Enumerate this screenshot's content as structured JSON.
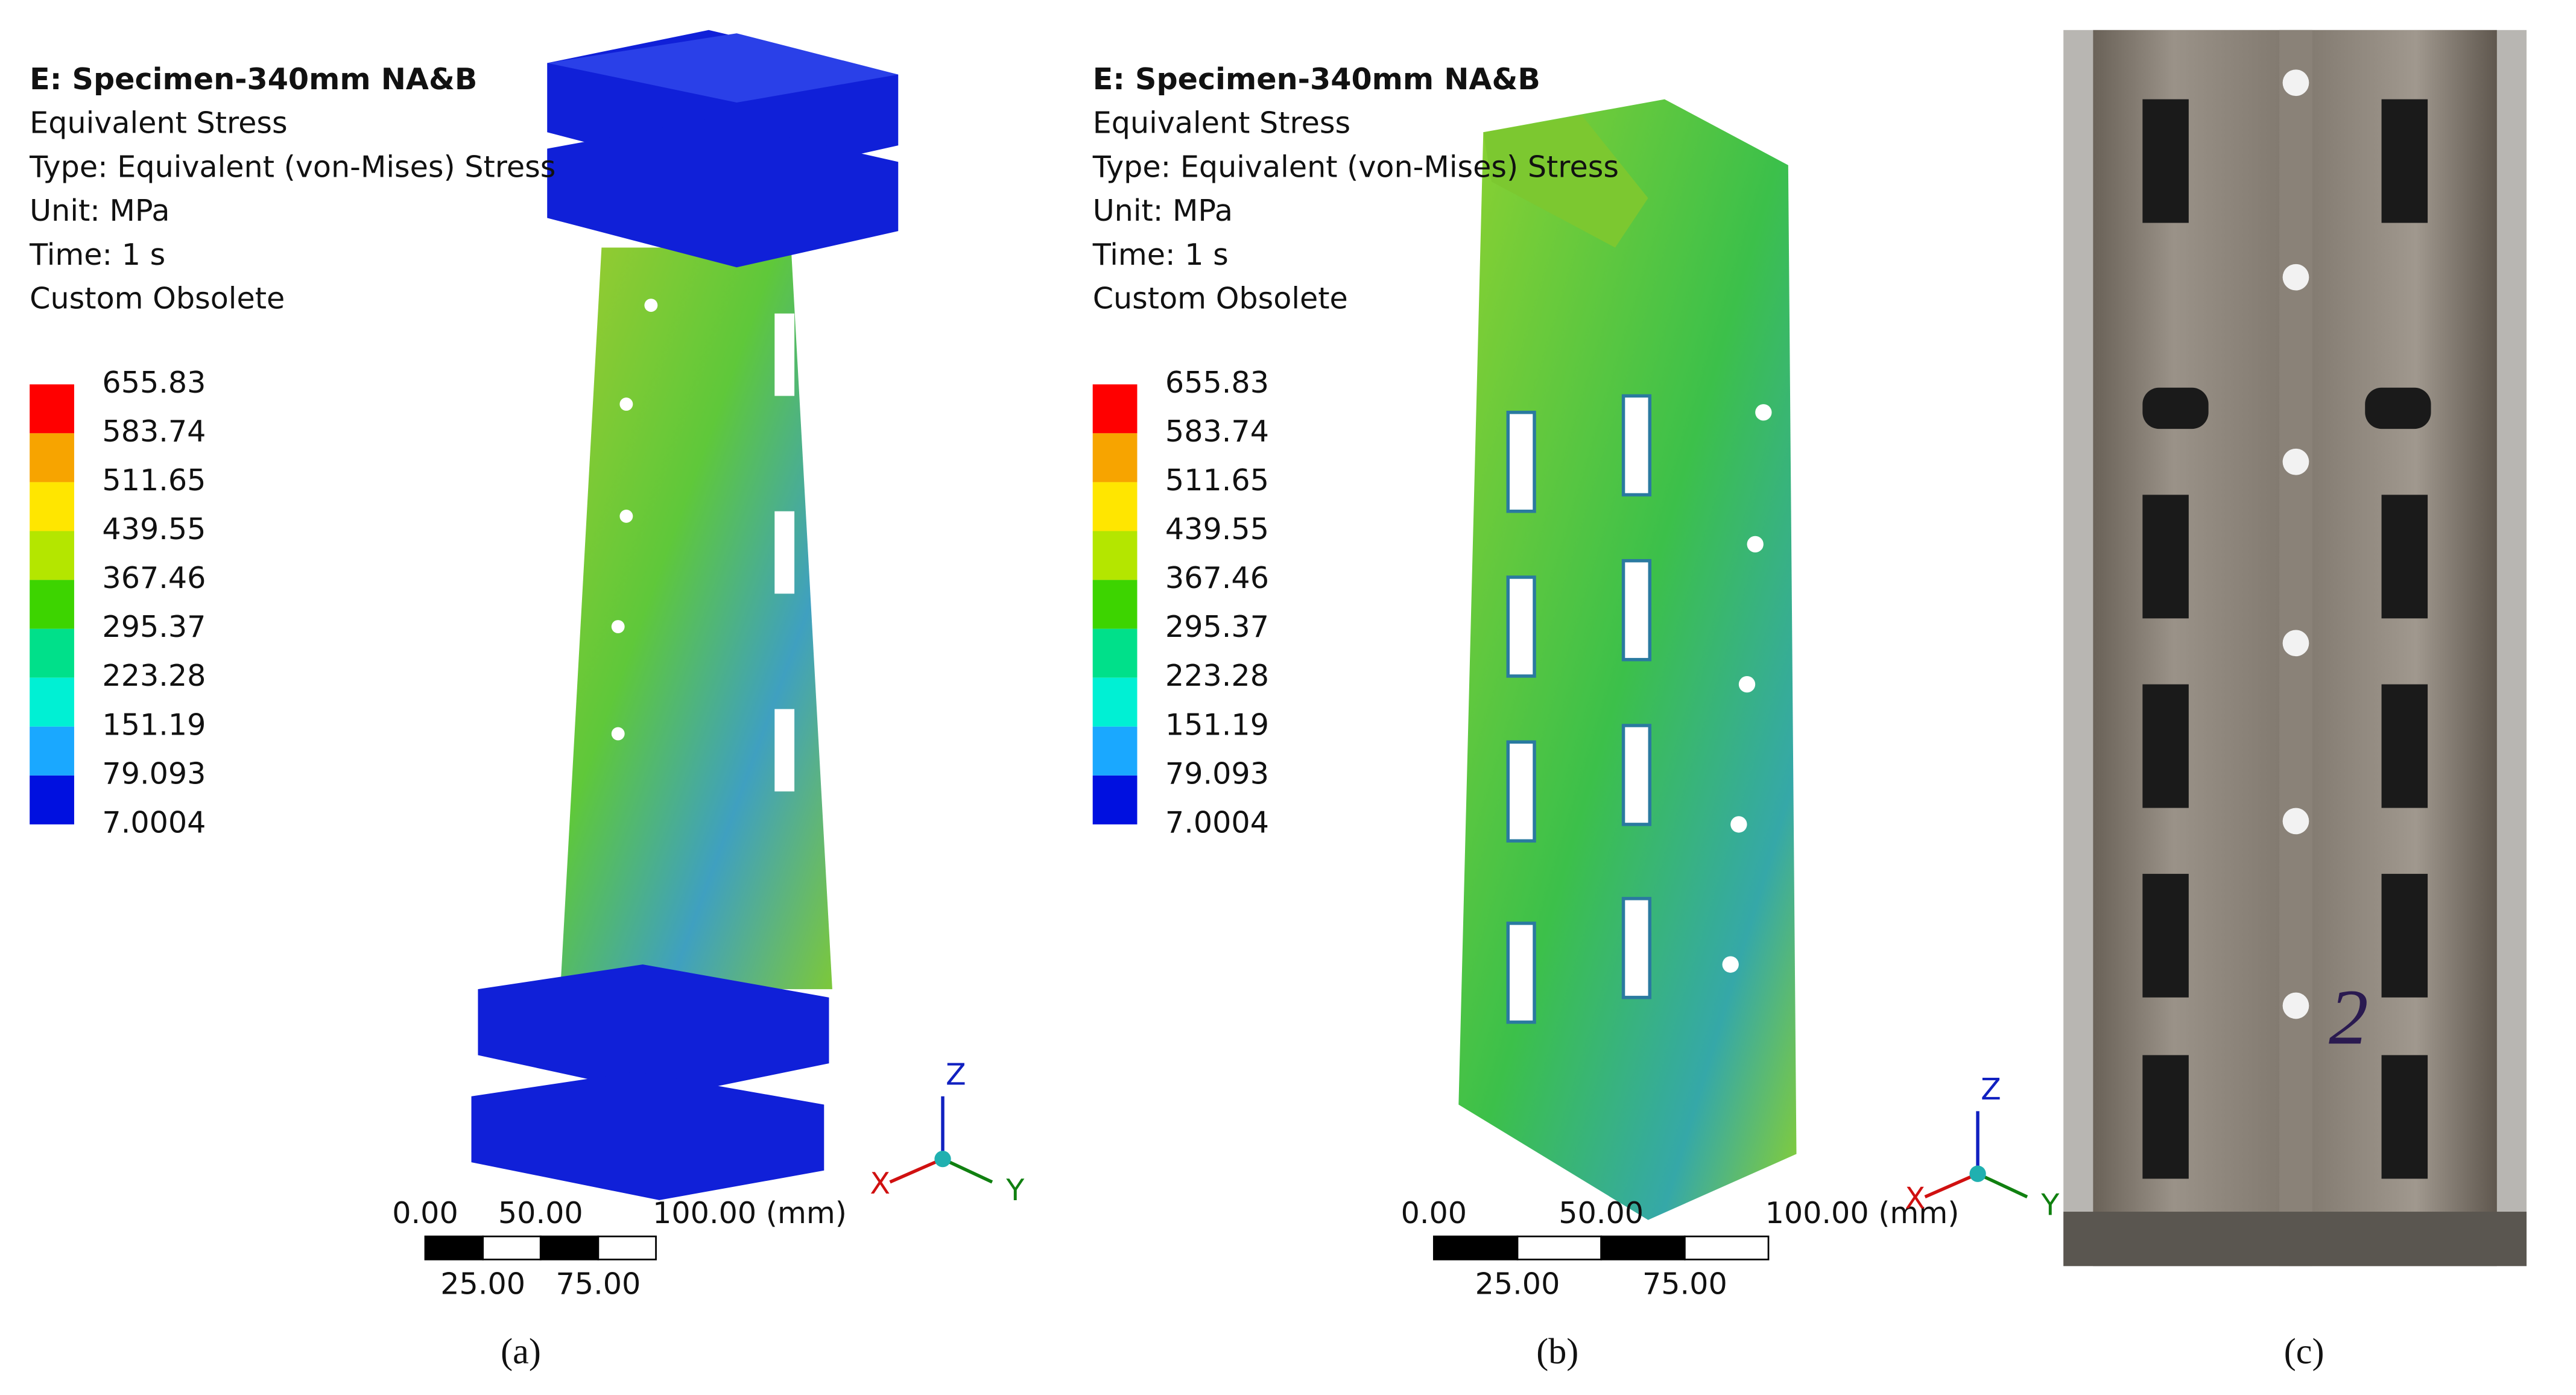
{
  "panels": [
    {
      "header": [
        "E: Specimen-340mm NA&B",
        "Equivalent Stress",
        "Type: Equivalent (von-Mises) Stress",
        "Unit: MPa",
        "Time: 1 s",
        "Custom Obsolete"
      ],
      "legend": {
        "values": [
          "655.83",
          "583.74",
          "511.65",
          "439.55",
          "367.46",
          "295.37",
          "223.28",
          "151.19",
          "79.093",
          "7.0004"
        ],
        "colors": [
          "#ff0000",
          "#f7a400",
          "#ffe600",
          "#b4e600",
          "#3dd400",
          "#00e08a",
          "#00f0d4",
          "#1aa8ff",
          "#0010e0"
        ]
      },
      "scale_bar": {
        "top": [
          "0.00",
          "50.00",
          "100.00 (mm)"
        ],
        "bottom": [
          "25.00",
          "75.00"
        ]
      },
      "axes": {
        "z": "Z",
        "x": "X",
        "y": "Y"
      },
      "caption": "(a)"
    },
    {
      "header": [
        "E: Specimen-340mm NA&B",
        "Equivalent Stress",
        "Type: Equivalent (von-Mises) Stress",
        "Unit: MPa",
        "Time: 1 s",
        "Custom Obsolete"
      ],
      "legend": {
        "values": [
          "655.83",
          "583.74",
          "511.65",
          "439.55",
          "367.46",
          "295.37",
          "223.28",
          "151.19",
          "79.093",
          "7.0004"
        ],
        "colors": [
          "#ff0000",
          "#f7a400",
          "#ffe600",
          "#b4e600",
          "#3dd400",
          "#00e08a",
          "#00f0d4",
          "#1aa8ff",
          "#0010e0"
        ]
      },
      "scale_bar": {
        "top": [
          "0.00",
          "50.00",
          "100.00 (mm)"
        ],
        "bottom": [
          "25.00",
          "75.00"
        ]
      },
      "axes": {
        "z": "Z",
        "x": "X",
        "y": "Y"
      },
      "caption": "(b)"
    },
    {
      "marking": "2",
      "caption": "(c)"
    }
  ]
}
